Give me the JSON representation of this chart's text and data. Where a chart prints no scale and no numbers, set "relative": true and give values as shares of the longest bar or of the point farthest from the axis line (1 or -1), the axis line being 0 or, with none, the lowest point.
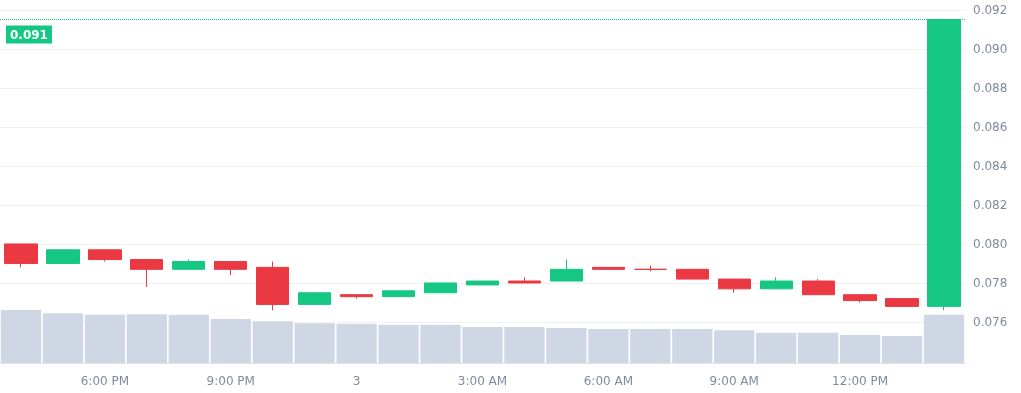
{
  "chart_data": [
    {
      "type": "candlestick",
      "categories": [
        null,
        null,
        "6:00 PM",
        null,
        null,
        "9:00 PM",
        null,
        null,
        "3",
        null,
        null,
        "3:00 AM",
        null,
        null,
        "6:00 AM",
        null,
        null,
        "9:00 AM",
        null,
        null,
        "12:00 PM",
        null,
        null
      ],
      "ohlc": [
        [
          0.08,
          0.08,
          0.0788,
          0.079
        ],
        [
          0.079,
          0.0797,
          0.079,
          0.0797
        ],
        [
          0.0797,
          0.0797,
          0.0791,
          0.0792
        ],
        [
          0.0792,
          0.0792,
          0.0778,
          0.0787
        ],
        [
          0.0787,
          0.0792,
          0.0787,
          0.0791
        ],
        [
          0.0791,
          0.0791,
          0.0784,
          0.0787
        ],
        [
          0.0788,
          0.0791,
          0.0766,
          0.0769
        ],
        [
          0.0769,
          0.0775,
          0.0769,
          0.0775
        ],
        [
          0.0774,
          0.0774,
          0.0772,
          0.0773
        ],
        [
          0.0773,
          0.0776,
          0.0773,
          0.0776
        ],
        [
          0.0775,
          0.078,
          0.0775,
          0.078
        ],
        [
          0.0779,
          0.0781,
          0.0779,
          0.0781
        ],
        [
          0.0781,
          0.0783,
          0.078,
          0.078
        ],
        [
          0.0781,
          0.0792,
          0.0781,
          0.0787
        ],
        [
          0.0788,
          0.0788,
          0.0787,
          0.0787
        ],
        [
          0.0787,
          0.0789,
          0.0786,
          0.0787
        ],
        [
          0.0787,
          0.0787,
          0.0782,
          0.0782
        ],
        [
          0.0782,
          0.0782,
          0.0775,
          0.0777
        ],
        [
          0.0777,
          0.0783,
          0.0777,
          0.0781
        ],
        [
          0.0781,
          0.0782,
          0.0774,
          0.0774
        ],
        [
          0.0774,
          0.0774,
          0.077,
          0.0771
        ],
        [
          0.0772,
          0.0772,
          0.0768,
          0.0768
        ],
        [
          0.0768,
          0.0915,
          0.0766,
          0.0915
        ]
      ],
      "colors": [
        "#ea3943",
        "#16c784",
        "#ea3943",
        "#ea3943",
        "#16c784",
        "#ea3943",
        "#ea3943",
        "#16c784",
        "#ea3943",
        "#16c784",
        "#16c784",
        "#16c784",
        "#ea3943",
        "#16c784",
        "#ea3943",
        "#ea3943",
        "#ea3943",
        "#ea3943",
        "#16c784",
        "#ea3943",
        "#ea3943",
        "#ea3943",
        "#16c784"
      ],
      "ylim": [
        0.0739,
        0.0925
      ],
      "yticks": [
        0.076,
        0.078,
        {
          "value": 0.08,
          "label": "0.080"
        },
        0.082,
        0.084,
        0.086,
        0.088,
        {
          "value": 0.09,
          "label": "0.090"
        },
        0.092
      ],
      "grid": "y",
      "ref_lines": [
        {
          "axis": "y",
          "value": 0.0915,
          "label": "0.091",
          "color": "#16c784",
          "line_style": "dotted"
        }
      ]
    },
    {
      "type": "bar",
      "relative": true,
      "categories": [
        null,
        null,
        null,
        null,
        null,
        null,
        null,
        null,
        null,
        null,
        null,
        null,
        null,
        null,
        null,
        null,
        null,
        null,
        null,
        null,
        null,
        null,
        null
      ],
      "values": [
        1.0,
        0.94,
        0.91,
        0.92,
        0.91,
        0.83,
        0.79,
        0.75,
        0.74,
        0.72,
        0.72,
        0.68,
        0.68,
        0.66,
        0.64,
        0.64,
        0.64,
        0.62,
        0.57,
        0.57,
        0.53,
        0.51,
        0.91
      ],
      "color": "#cfd6e4"
    }
  ]
}
